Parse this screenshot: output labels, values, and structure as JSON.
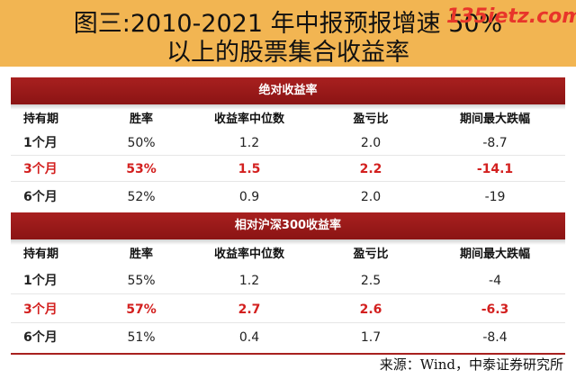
{
  "title": {
    "line1": "图三:2010-2021 年中报预报增速 50%",
    "line2": "以上的股票集合收益率"
  },
  "watermark": "135ietz.com",
  "sections": [
    {
      "label": "绝对收益率",
      "headers": [
        "持有期",
        "胜率",
        "收益率中位数",
        "盈亏比",
        "期间最大跌幅"
      ],
      "rows": [
        {
          "cells": [
            "1个月",
            "50%",
            "1.2",
            "2.0",
            "-8.7"
          ],
          "highlight": false
        },
        {
          "cells": [
            "3个月",
            "53%",
            "1.5",
            "2.2",
            "-14.1"
          ],
          "highlight": true
        },
        {
          "cells": [
            "6个月",
            "52%",
            "0.9",
            "2.0",
            "-19"
          ],
          "highlight": false
        }
      ]
    },
    {
      "label": "相对沪深300收益率",
      "headers": [
        "持有期",
        "胜率",
        "收益率中位数",
        "盈亏比",
        "期间最大跌幅"
      ],
      "rows": [
        {
          "cells": [
            "1个月",
            "55%",
            "1.2",
            "2.5",
            "-4"
          ],
          "highlight": false
        },
        {
          "cells": [
            "3个月",
            "57%",
            "2.7",
            "2.6",
            "-6.3"
          ],
          "highlight": true
        },
        {
          "cells": [
            "6个月",
            "51%",
            "0.4",
            "1.7",
            "-8.4"
          ],
          "highlight": false
        }
      ]
    }
  ],
  "source": "来源：Wind，中泰证券研究所",
  "colors": {
    "title_bg": "#f2b552",
    "section_bar": "#a8201f",
    "highlight": "#d3201f"
  }
}
